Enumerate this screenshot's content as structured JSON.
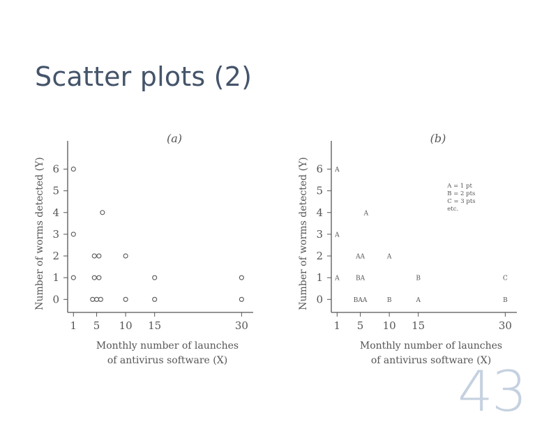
{
  "slide": {
    "title": "Scatter plots (2)",
    "page_number": "43"
  },
  "colors": {
    "title": "#44546a",
    "page_number": "#c5d1e0",
    "ink": "#555555"
  },
  "chart_data": [
    {
      "type": "scatter",
      "title": "(a)",
      "xlabel": [
        "Monthly number of launches",
        "of antivirus software (X)"
      ],
      "ylabel": "Number of worms detected (Y)",
      "xlim": [
        0,
        32
      ],
      "ylim": [
        -0.6,
        7.3
      ],
      "xticks": [
        1,
        5,
        10,
        15,
        30
      ],
      "yticks": [
        0,
        1,
        2,
        3,
        4,
        5,
        6
      ],
      "grid": false,
      "marker": "circle",
      "points": [
        {
          "x": 1,
          "y": 6
        },
        {
          "x": 1,
          "y": 3
        },
        {
          "x": 1,
          "y": 1
        },
        {
          "x": 4.6,
          "y": 2
        },
        {
          "x": 5.4,
          "y": 2
        },
        {
          "x": 4.6,
          "y": 1
        },
        {
          "x": 5.4,
          "y": 1
        },
        {
          "x": 4.3,
          "y": 0
        },
        {
          "x": 5.0,
          "y": 0
        },
        {
          "x": 5.7,
          "y": 0
        },
        {
          "x": 6,
          "y": 4
        },
        {
          "x": 10,
          "y": 2
        },
        {
          "x": 10,
          "y": 0
        },
        {
          "x": 15,
          "y": 1
        },
        {
          "x": 15,
          "y": 0
        },
        {
          "x": 30,
          "y": 1
        },
        {
          "x": 30,
          "y": 0
        }
      ]
    },
    {
      "type": "scatter",
      "title": "(b)",
      "xlabel": [
        "Monthly number of launches",
        "of antivirus software (X)"
      ],
      "ylabel": "Number of worms detected (Y)",
      "xlim": [
        0,
        32
      ],
      "ylim": [
        -0.6,
        7.3
      ],
      "xticks": [
        1,
        5,
        10,
        15,
        30
      ],
      "yticks": [
        0,
        1,
        2,
        3,
        4,
        5,
        6
      ],
      "grid": false,
      "marker": "letter",
      "legend": {
        "placement": "top-right",
        "entries": [
          "A = 1 pt",
          "B = 2 pts",
          "C = 3 pts",
          "etc."
        ]
      },
      "points": [
        {
          "x": 1,
          "y": 6,
          "label": "A"
        },
        {
          "x": 1,
          "y": 3,
          "label": "A"
        },
        {
          "x": 1,
          "y": 1,
          "label": "A"
        },
        {
          "x": 6,
          "y": 4,
          "label": "A"
        },
        {
          "x": 5,
          "y": 2,
          "label": "AA"
        },
        {
          "x": 10,
          "y": 2,
          "label": "A"
        },
        {
          "x": 5,
          "y": 1,
          "label": "BA"
        },
        {
          "x": 15,
          "y": 1,
          "label": "B"
        },
        {
          "x": 30,
          "y": 1,
          "label": "C"
        },
        {
          "x": 5,
          "y": 0,
          "label": "BAA"
        },
        {
          "x": 10,
          "y": 0,
          "label": "B"
        },
        {
          "x": 15,
          "y": 0,
          "label": "A"
        },
        {
          "x": 30,
          "y": 0,
          "label": "B"
        }
      ]
    }
  ]
}
